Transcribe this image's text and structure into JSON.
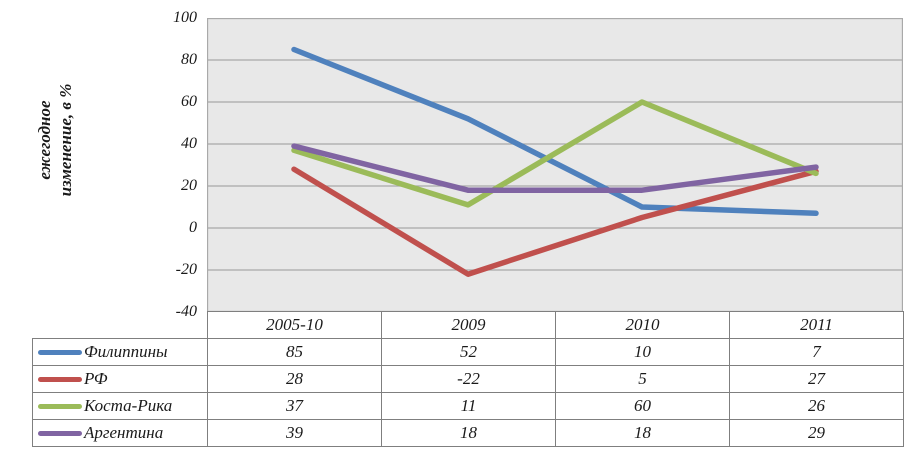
{
  "chart": {
    "y_axis_title_lines": [
      "ежегодное",
      "изменение, в %"
    ],
    "y_ticks": [
      100,
      80,
      60,
      40,
      20,
      0,
      -20,
      -40
    ],
    "plot_bg_color": "#e8e8e8",
    "gridline_color": "#a9a9a9",
    "table_border_color": "#7f7f7f"
  },
  "chart_data": {
    "type": "line",
    "title": "",
    "xlabel": "",
    "ylabel": "ежегодное изменение, в %",
    "categories": [
      "2005-10",
      "2009",
      "2010",
      "2011"
    ],
    "series": [
      {
        "name": "Филиппины",
        "color": "#4f81bd",
        "values": [
          85,
          52,
          10,
          7
        ]
      },
      {
        "name": "РФ",
        "color": "#c0504d",
        "values": [
          28,
          -22,
          5,
          27
        ]
      },
      {
        "name": "Коста-Рика",
        "color": "#9bbb59",
        "values": [
          37,
          11,
          60,
          26
        ]
      },
      {
        "name": "Аргентина",
        "color": "#8064a2",
        "values": [
          39,
          18,
          18,
          29
        ]
      }
    ],
    "ylim": [
      -40,
      100
    ],
    "y_tick_step": 20,
    "grid": true,
    "legend_position": "table-below-left"
  }
}
